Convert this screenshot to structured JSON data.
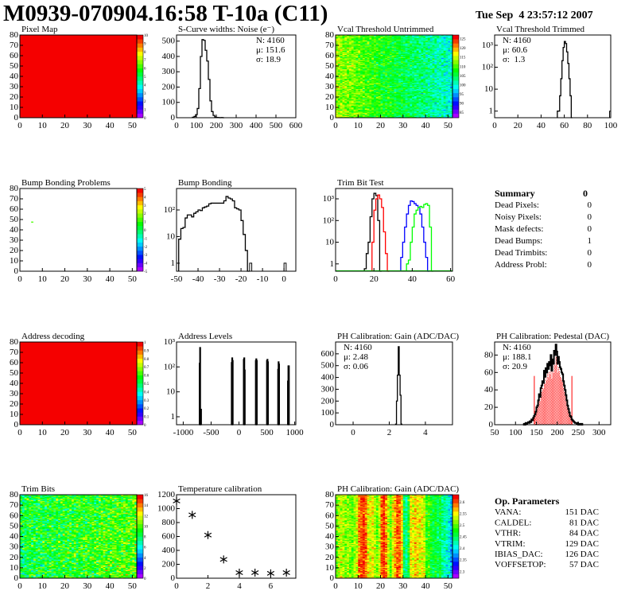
{
  "header": {
    "title": "M0939-070904.16:58 T-10a (C11)",
    "date": "Tue Sep  4 23:57:12 2007"
  },
  "colors": {
    "frame": "#000000",
    "red": "#ff0000",
    "blue": "#0000ff",
    "green": "#00ff00"
  },
  "chart_data": [
    {
      "type": "heatmap",
      "title": "Pixel Map",
      "xlim": [
        0,
        52
      ],
      "ylim": [
        0,
        80
      ],
      "x_ticks": [
        0,
        10,
        20,
        30,
        40,
        50
      ],
      "y_ticks": [
        0,
        10,
        20,
        30,
        40,
        50,
        60,
        70,
        80
      ],
      "zlim": [
        0,
        10
      ],
      "z_ticks": [
        0,
        1,
        2,
        3,
        4,
        5,
        6,
        7,
        8,
        9,
        10
      ],
      "generator": {
        "kind": "uniform",
        "value": 10
      }
    },
    {
      "type": "bar",
      "title": "S-Curve widths: Noise (e⁻)",
      "xlim": [
        0,
        600
      ],
      "ylim": [
        0,
        540
      ],
      "x_ticks": [
        0,
        100,
        200,
        300,
        400,
        500,
        600
      ],
      "y_ticks": [
        0,
        100,
        200,
        300,
        400,
        500
      ],
      "hist": {
        "start": 80,
        "width": 8,
        "values": [
          3,
          8,
          20,
          60,
          190,
          400,
          510,
          505,
          440,
          370,
          250,
          110,
          40,
          15,
          5,
          2,
          1,
          0,
          1,
          0
        ]
      },
      "stats": [
        {
          "text": "N: 4160"
        },
        {
          "text": "μ: 151.6"
        },
        {
          "text": "σ: 18.9"
        }
      ]
    },
    {
      "type": "heatmap",
      "title": "Vcal Threshold Untrimmed",
      "xlim": [
        0,
        52
      ],
      "ylim": [
        0,
        80
      ],
      "x_ticks": [
        0,
        10,
        20,
        30,
        40,
        50
      ],
      "y_ticks": [
        0,
        10,
        20,
        30,
        40,
        50,
        60,
        70,
        80
      ],
      "zlim": [
        82,
        127
      ],
      "z_ticks": [
        85,
        90,
        95,
        100,
        105,
        110,
        115,
        120,
        125
      ],
      "generator": {
        "kind": "gradient",
        "left": 113,
        "right": 100,
        "spread": 4
      }
    },
    {
      "type": "bar",
      "title": "Vcal Threshold Trimmed",
      "log_y": true,
      "xlim": [
        0,
        100
      ],
      "ylim": [
        0.5,
        2950
      ],
      "x_ticks": [
        0,
        20,
        40,
        60,
        80,
        100
      ],
      "y_ticks": [
        1,
        10,
        100,
        1000
      ],
      "y_tick_labels": [
        "1",
        "10",
        "10²",
        "10³"
      ],
      "hist": {
        "start": 54,
        "width": 1,
        "values": [
          1,
          1,
          5,
          30,
          200,
          800,
          1500,
          1200,
          500,
          150,
          30,
          5,
          0
        ]
      },
      "extra_bins": [
        {
          "x": 99,
          "width": 1,
          "value": 1
        }
      ],
      "stats": [
        {
          "text": "N: 4160"
        },
        {
          "text": "μ: 60.6"
        },
        {
          "text": "σ:  1.3"
        }
      ]
    },
    {
      "type": "heatmap",
      "title": "Bump Bonding Problems",
      "xlim": [
        0,
        52
      ],
      "ylim": [
        0,
        80
      ],
      "x_ticks": [
        0,
        10,
        20,
        30,
        40,
        50
      ],
      "y_ticks": [
        0,
        10,
        20,
        30,
        40,
        50,
        60,
        70,
        80
      ],
      "zlim": [
        -5,
        5
      ],
      "z_ticks": [
        -5,
        -4,
        -3,
        -2,
        -1,
        0,
        1,
        2,
        3,
        4,
        5
      ],
      "generator": {
        "kind": "points",
        "points": [
          {
            "x": 5,
            "y": 47,
            "z": 1
          }
        ]
      }
    },
    {
      "type": "bar",
      "title": "Bump Bonding",
      "log_y": true,
      "xlim": [
        -50,
        5.5
      ],
      "ylim": [
        0.5,
        640
      ],
      "x_ticks": [
        -50,
        -40,
        -30,
        -20,
        -10,
        0
      ],
      "y_ticks": [
        1,
        10,
        100
      ],
      "y_tick_labels": [
        "1",
        "10",
        "10²"
      ],
      "hist": {
        "start": -49,
        "width": 1,
        "values": [
          8,
          20,
          22,
          50,
          65,
          65,
          55,
          75,
          85,
          100,
          95,
          120,
          130,
          140,
          170,
          180,
          180,
          180,
          180,
          180,
          180,
          220,
          320,
          280,
          260,
          220,
          120,
          110,
          100,
          40,
          12,
          3,
          0.5
        ]
      },
      "extra_bins": [
        {
          "x": -16,
          "width": 1,
          "value": 1
        },
        {
          "x": 0,
          "width": 1,
          "value": 1
        }
      ]
    },
    {
      "type": "line",
      "title": "Trim Bit Test",
      "log_y": true,
      "xlim": [
        0,
        61
      ],
      "ylim": [
        0.46,
        3000
      ],
      "x_ticks": [
        0,
        20,
        40,
        60
      ],
      "y_ticks": [
        1,
        10,
        100,
        1000
      ],
      "y_tick_labels": [
        "1",
        "10",
        "10²",
        "10³"
      ],
      "series": [
        {
          "color": "#000000",
          "start": 15,
          "width": 1,
          "values": [
            0.6,
            3,
            10,
            150,
            1000,
            1800,
            1400,
            100,
            0
          ]
        },
        {
          "color": "#ff0000",
          "start": 19,
          "width": 1,
          "values": [
            10,
            300,
            1000,
            1500,
            1000,
            400,
            30,
            3,
            0
          ]
        },
        {
          "color": "#0000ff",
          "start": 34,
          "width": 1,
          "values": [
            2,
            10,
            50,
            200,
            500,
            800,
            750,
            600,
            500,
            400,
            200,
            50,
            10,
            2,
            0
          ]
        },
        {
          "color": "#00ff00",
          "start": 37,
          "width": 1,
          "values": [
            1,
            1.5,
            10,
            50,
            200,
            300,
            400,
            450,
            400,
            550,
            600,
            500,
            50,
            0
          ]
        }
      ]
    },
    {
      "type": "table",
      "kind": "summary",
      "title": "Summary",
      "value": "0",
      "rows": [
        {
          "label": "Dead Pixels:",
          "value": "0"
        },
        {
          "label": "Noisy Pixels:",
          "value": "0"
        },
        {
          "label": "Mask defects:",
          "value": "0"
        },
        {
          "label": "Dead Bumps:",
          "value": "1"
        },
        {
          "label": "Dead Trimbits:",
          "value": "0"
        },
        {
          "label": "Address Probl:",
          "value": "0"
        }
      ]
    },
    {
      "type": "heatmap",
      "title": "Address decoding",
      "xlim": [
        0,
        52
      ],
      "ylim": [
        0,
        80
      ],
      "x_ticks": [
        0,
        10,
        20,
        30,
        40,
        50
      ],
      "y_ticks": [
        0,
        10,
        20,
        30,
        40,
        50,
        60,
        70,
        80
      ],
      "zlim": [
        0,
        1
      ],
      "z_ticks": [
        0,
        0.1,
        0.2,
        0.3,
        0.4,
        0.5,
        0.6,
        0.7,
        0.8,
        0.9,
        1
      ],
      "generator": {
        "kind": "uniform",
        "value": 1
      }
    },
    {
      "type": "bar",
      "title": "Address Levels",
      "log_y": true,
      "xlim": [
        -1120,
        1020
      ],
      "ylim": [
        0.48,
        1000
      ],
      "x_ticks": [
        -1000,
        -500,
        0,
        500,
        1000
      ],
      "y_ticks": [
        1,
        10,
        100,
        1000
      ],
      "y_tick_labels": [
        "1",
        "10",
        "10²",
        "10³"
      ],
      "bin_width": 8,
      "bars": [
        [
          -712,
          140
        ],
        [
          -704,
          600
        ],
        [
          -696,
          1
        ],
        [
          -688,
          2
        ],
        [
          -136,
          150
        ],
        [
          -128,
          230
        ],
        [
          -120,
          180
        ],
        [
          80,
          200
        ],
        [
          88,
          230
        ],
        [
          96,
          75
        ],
        [
          296,
          180
        ],
        [
          304,
          210
        ],
        [
          312,
          180
        ],
        [
          496,
          180
        ],
        [
          504,
          200
        ],
        [
          512,
          160
        ],
        [
          696,
          80
        ],
        [
          704,
          160
        ],
        [
          712,
          130
        ],
        [
          872,
          27
        ],
        [
          880,
          110
        ],
        [
          888,
          110
        ]
      ]
    },
    {
      "type": "bar",
      "title": "PH Calibration: Gain (ADC/DAC)",
      "xlim": [
        -0.97,
        5.5
      ],
      "ylim": [
        0,
        700
      ],
      "x_ticks": [
        0,
        2,
        4
      ],
      "y_ticks": [
        0,
        100,
        200,
        300,
        400,
        500,
        600
      ],
      "hist": {
        "start": 2.35,
        "width": 0.05,
        "values": [
          5,
          200,
          420,
          660,
          420,
          250,
          5
        ]
      },
      "stats": [
        {
          "text": "N: 4160"
        },
        {
          "text": "μ: 2.48"
        },
        {
          "text": "σ: 0.06"
        }
      ]
    },
    {
      "type": "bar",
      "title": "PH Calibration: Pedestal (DAC)",
      "xlim": [
        50,
        328
      ],
      "ylim": [
        0,
        95
      ],
      "x_ticks": [
        50,
        100,
        150,
        200,
        250,
        300
      ],
      "y_ticks": [
        0,
        20,
        40,
        60,
        80
      ],
      "hist": {
        "start": 118,
        "width": 2,
        "values": [
          0,
          1,
          0,
          2,
          1,
          2,
          3,
          2,
          4,
          3,
          6,
          5,
          8,
          10,
          12,
          15,
          20,
          22,
          28,
          35,
          32,
          42,
          45,
          50,
          48,
          62,
          55,
          65,
          60,
          70,
          64,
          72,
          68,
          80,
          62,
          75,
          70,
          85,
          80,
          92,
          84,
          70,
          78,
          72,
          66,
          64,
          60,
          58,
          50,
          45,
          40,
          34,
          28,
          22,
          18,
          14,
          10,
          9,
          6,
          5,
          4,
          3,
          2,
          2,
          1,
          2,
          0,
          1,
          1,
          0,
          1,
          0
        ]
      },
      "fit_range": [
        145,
        235
      ],
      "fit_line_height": 56,
      "stats": [
        {
          "text": "N: 4160",
          "color": "#000000"
        },
        {
          "text": "μ: 188.1",
          "color": "#ff0000"
        },
        {
          "text": "σ: 20.9",
          "color": "#ff0000"
        }
      ]
    },
    {
      "type": "heatmap",
      "title": "Trim Bits",
      "xlim": [
        0,
        52
      ],
      "ylim": [
        0,
        80
      ],
      "x_ticks": [
        0,
        10,
        20,
        30,
        40,
        50
      ],
      "y_ticks": [
        0,
        10,
        20,
        30,
        40,
        50,
        60,
        70,
        80
      ],
      "zlim": [
        0,
        16
      ],
      "z_ticks": [
        0,
        2,
        4,
        6,
        8,
        10,
        12,
        14,
        16
      ],
      "generator": {
        "kind": "gradient",
        "left": 8.5,
        "right": 10,
        "spread": 2.2
      }
    },
    {
      "type": "scatter",
      "title": "Temperature calibration",
      "xlim": [
        0,
        7.6
      ],
      "ylim": [
        0,
        1200
      ],
      "x_ticks": [
        0,
        2,
        4,
        6
      ],
      "y_ticks": [
        0,
        200,
        400,
        600,
        800,
        1000,
        1200
      ],
      "x": [
        0,
        1,
        2,
        3,
        4,
        5,
        6,
        7
      ],
      "y": [
        1110,
        910,
        620,
        270,
        80,
        80,
        70,
        80
      ]
    },
    {
      "type": "heatmap",
      "title": "PH Calibration: Gain (ADC/DAC)",
      "xlim": [
        0,
        52
      ],
      "ylim": [
        0,
        80
      ],
      "x_ticks": [
        0,
        10,
        20,
        30,
        40,
        50
      ],
      "y_ticks": [
        0,
        10,
        20,
        30,
        40,
        50,
        60,
        70,
        80
      ],
      "zlim": [
        2.27,
        2.63
      ],
      "z_ticks": [
        2.3,
        2.35,
        2.4,
        2.45,
        2.5,
        2.55,
        2.6
      ],
      "generator": {
        "kind": "columns",
        "spread": 0.03,
        "column_means": [
          2.5,
          2.52,
          2.53,
          2.52,
          2.51,
          2.52,
          2.51,
          2.5,
          2.52,
          2.53,
          2.59,
          2.6,
          2.61,
          2.59,
          2.55,
          2.54,
          2.55,
          2.52,
          2.5,
          2.53,
          2.6,
          2.61,
          2.58,
          2.53,
          2.5,
          2.55,
          2.57,
          2.6,
          2.59,
          2.56,
          2.45,
          2.43,
          2.47,
          2.55,
          2.54,
          2.56,
          2.55,
          2.54,
          2.55,
          2.53,
          2.48,
          2.49,
          2.47,
          2.46,
          2.47,
          2.45,
          2.46,
          2.44,
          2.43,
          2.42,
          2.4,
          2.38
        ]
      }
    },
    {
      "type": "table",
      "kind": "params",
      "title": "Op. Parameters",
      "rows": [
        {
          "label": "VANA:",
          "value": "151 DAC"
        },
        {
          "label": "CALDEL:",
          "value": "81 DAC"
        },
        {
          "label": "VTHR:",
          "value": "84 DAC"
        },
        {
          "label": "VTRIM:",
          "value": "129 DAC"
        },
        {
          "label": "IBIAS_DAC:",
          "value": "126 DAC"
        },
        {
          "label": "VOFFSETOP:",
          "value": "57 DAC"
        }
      ]
    }
  ]
}
